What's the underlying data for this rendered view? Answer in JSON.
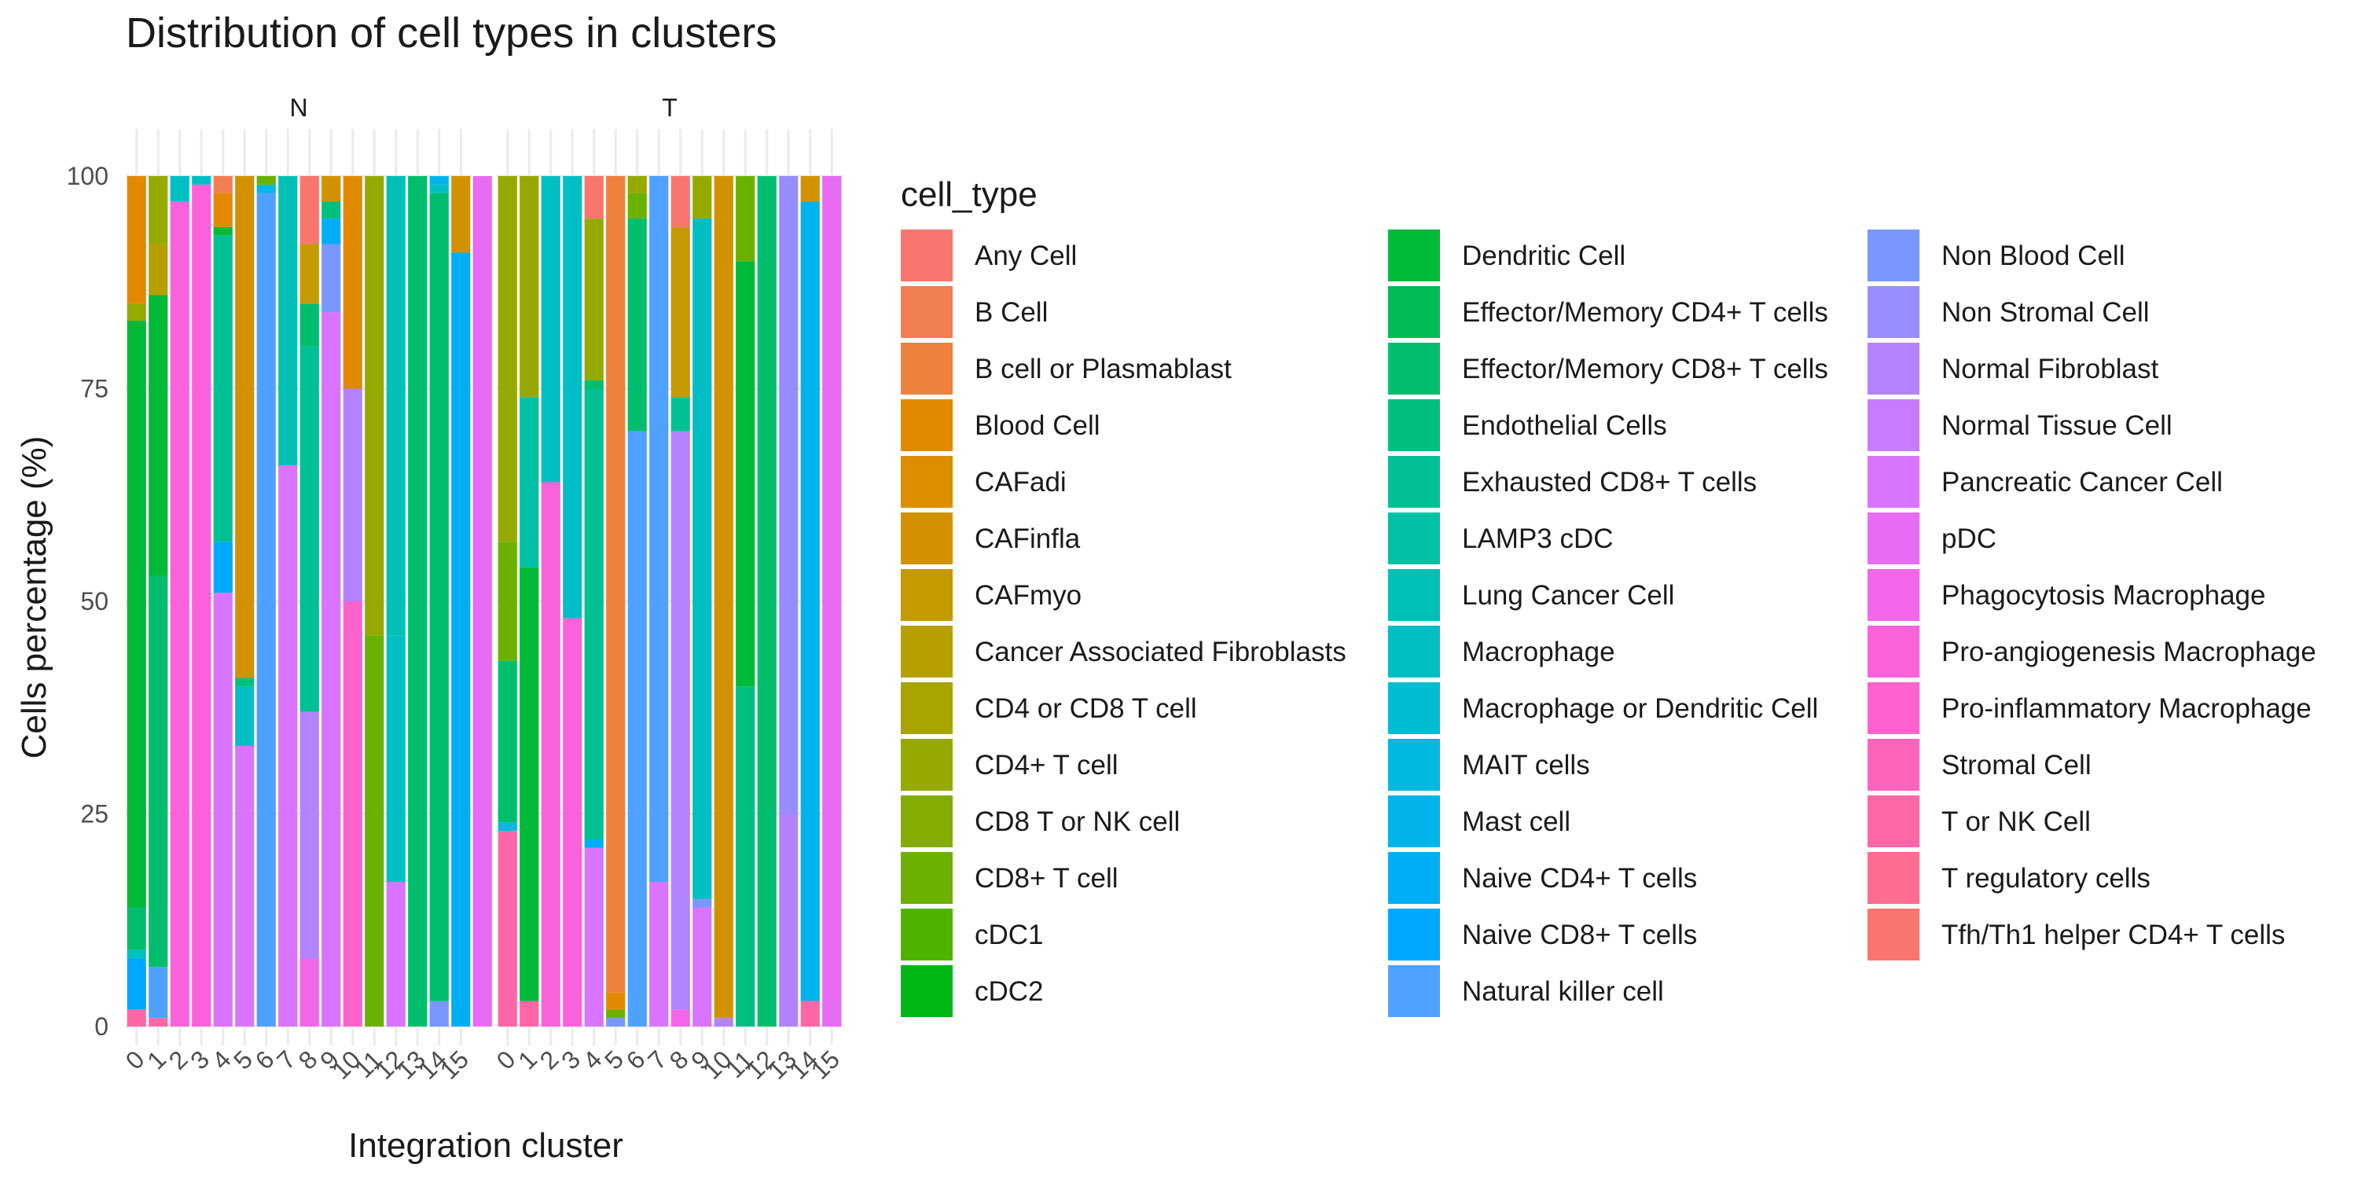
{
  "chart_data": {
    "type": "bar",
    "stacked": true,
    "title": "Distribution of cell types in clusters",
    "xlabel": "Integration cluster",
    "ylabel": "Cells percentage (%)",
    "ylim": [
      0,
      100
    ],
    "yticks": [
      0,
      25,
      50,
      75,
      100
    ],
    "legend_title": "cell_type",
    "legend_position": "right",
    "grid": true,
    "categories": [
      "0",
      "1",
      "2",
      "3",
      "4",
      "5",
      "6",
      "7",
      "8",
      "9",
      "10",
      "11",
      "12",
      "13",
      "14",
      "15"
    ],
    "cell_types": [
      {
        "name": "Any Cell",
        "color": "#F8766D"
      },
      {
        "name": "B Cell",
        "color": "#F07F51"
      },
      {
        "name": "B cell or Plasmablast",
        "color": "#EC823C"
      },
      {
        "name": "Blood Cell",
        "color": "#E38900"
      },
      {
        "name": "CAFadi",
        "color": "#DD8D00"
      },
      {
        "name": "CAFinfla",
        "color": "#D29200"
      },
      {
        "name": "CAFmyo",
        "color": "#C59900"
      },
      {
        "name": "Cancer Associated Fibroblasts",
        "color": "#B79F00"
      },
      {
        "name": "CD4 or CD8 T cell",
        "color": "#A8A400"
      },
      {
        "name": "CD4+ T cell",
        "color": "#96A900"
      },
      {
        "name": "CD8 T or NK cell",
        "color": "#83AD00"
      },
      {
        "name": "CD8+ T cell",
        "color": "#6BB100"
      },
      {
        "name": "cDC1",
        "color": "#4CB400"
      },
      {
        "name": "cDC2",
        "color": "#00B813"
      },
      {
        "name": "Dendritic Cell",
        "color": "#00BA38"
      },
      {
        "name": "Effector/Memory CD4+ T cells",
        "color": "#00BC56"
      },
      {
        "name": "Effector/Memory CD8+ T cells",
        "color": "#00BE6D"
      },
      {
        "name": "Endothelial Cells",
        "color": "#00BF81"
      },
      {
        "name": "Exhausted CD8+ T cells",
        "color": "#00C094"
      },
      {
        "name": "LAMP3 cDC",
        "color": "#00C1A5"
      },
      {
        "name": "Lung Cancer Cell",
        "color": "#00C0B5"
      },
      {
        "name": "Macrophage",
        "color": "#00BFC4"
      },
      {
        "name": "Macrophage or Dendritic Cell",
        "color": "#00BCD3"
      },
      {
        "name": "MAIT cells",
        "color": "#00B8E0"
      },
      {
        "name": "Mast cell",
        "color": "#00B4EB"
      },
      {
        "name": "Naive CD4+ T cells",
        "color": "#00AEF5"
      },
      {
        "name": "Naive CD8+ T cells",
        "color": "#00A8FF"
      },
      {
        "name": "Natural killer cell",
        "color": "#4FA1FF"
      },
      {
        "name": "Non Blood Cell",
        "color": "#7997FF"
      },
      {
        "name": "Non Stromal Cell",
        "color": "#988DFF"
      },
      {
        "name": "Normal Fibroblast",
        "color": "#B383FF"
      },
      {
        "name": "Normal Tissue Cell",
        "color": "#C77CFF"
      },
      {
        "name": "Pancreatic Cancer Cell",
        "color": "#D874FD"
      },
      {
        "name": "pDC",
        "color": "#E76BF3"
      },
      {
        "name": "Phagocytosis Macrophage",
        "color": "#F266E9"
      },
      {
        "name": "Pro-angiogenesis Macrophage",
        "color": "#FA62DB"
      },
      {
        "name": "Pro-inflammatory Macrophage",
        "color": "#FF62CC"
      },
      {
        "name": "Stromal Cell",
        "color": "#FF64BB"
      },
      {
        "name": "T or NK Cell",
        "color": "#FF66A8"
      },
      {
        "name": "T regulatory cells",
        "color": "#FF6C91"
      },
      {
        "name": "Tfh/Th1 helper CD4+ T cells",
        "color": "#F8766D"
      }
    ],
    "facets": [
      {
        "label": "N",
        "bars": [
          [
            {
              "t": "T or NK Cell",
              "v": 2
            },
            {
              "t": "Naive CD8+ T cells",
              "v": 6
            },
            {
              "t": "Macrophage",
              "v": 1
            },
            {
              "t": "Effector/Memory CD8+ T cells",
              "v": 5
            },
            {
              "t": "Dendritic Cell",
              "v": 69
            },
            {
              "t": "CD4+ T cell",
              "v": 2
            },
            {
              "t": "Blood Cell",
              "v": 15
            }
          ],
          [
            {
              "t": "T or NK Cell",
              "v": 1
            },
            {
              "t": "Natural killer cell",
              "v": 6
            },
            {
              "t": "Effector/Memory CD8+ T cells",
              "v": 46
            },
            {
              "t": "Dendritic Cell",
              "v": 33
            },
            {
              "t": "Cancer Associated Fibroblasts",
              "v": 6
            },
            {
              "t": "CD4+ T cell",
              "v": 8
            }
          ],
          [
            {
              "t": "Pro-angiogenesis Macrophage",
              "v": 97
            },
            {
              "t": "Macrophage",
              "v": 3
            }
          ],
          [
            {
              "t": "Pro-angiogenesis Macrophage",
              "v": 99
            },
            {
              "t": "Macrophage",
              "v": 1
            }
          ],
          [
            {
              "t": "Pancreatic Cancer Cell",
              "v": 51
            },
            {
              "t": "Naive CD8+ T cells",
              "v": 6
            },
            {
              "t": "Exhausted CD8+ T cells",
              "v": 36
            },
            {
              "t": "Dendritic Cell",
              "v": 1
            },
            {
              "t": "Blood Cell",
              "v": 4
            },
            {
              "t": "B Cell",
              "v": 2
            }
          ],
          [
            {
              "t": "Pancreatic Cancer Cell",
              "v": 33
            },
            {
              "t": "Macrophage",
              "v": 7
            },
            {
              "t": "Endothelial Cells",
              "v": 1
            },
            {
              "t": "CAFinfla",
              "v": 59
            }
          ],
          [
            {
              "t": "Natural killer cell",
              "v": 98
            },
            {
              "t": "MAIT cells",
              "v": 1
            },
            {
              "t": "CD8+ T cell",
              "v": 1
            }
          ],
          [
            {
              "t": "Pancreatic Cancer Cell",
              "v": 66
            },
            {
              "t": "Lung Cancer Cell",
              "v": 34
            }
          ],
          [
            {
              "t": "Phagocytosis Macrophage",
              "v": 8
            },
            {
              "t": "Normal Fibroblast",
              "v": 29
            },
            {
              "t": "Exhausted CD8+ T cells",
              "v": 43
            },
            {
              "t": "Effector/Memory CD8+ T cells",
              "v": 5
            },
            {
              "t": "CAFmyo",
              "v": 7
            },
            {
              "t": "Any Cell",
              "v": 8
            }
          ],
          [
            {
              "t": "Pancreatic Cancer Cell",
              "v": 84
            },
            {
              "t": "Non Blood Cell",
              "v": 8
            },
            {
              "t": "Naive CD4+ T cells",
              "v": 3
            },
            {
              "t": "Endothelial Cells",
              "v": 2
            },
            {
              "t": "CAFinfla",
              "v": 3
            }
          ],
          [
            {
              "t": "Pro-inflammatory Macrophage",
              "v": 50
            },
            {
              "t": "Normal Fibroblast",
              "v": 25
            },
            {
              "t": "Blood Cell",
              "v": 25
            }
          ],
          [
            {
              "t": "CD8+ T cell",
              "v": 46
            },
            {
              "t": "CD4+ T cell",
              "v": 54
            }
          ],
          [
            {
              "t": "Pancreatic Cancer Cell",
              "v": 17
            },
            {
              "t": "Macrophage",
              "v": 29
            },
            {
              "t": "Lung Cancer Cell",
              "v": 54
            }
          ],
          [
            {
              "t": "Effector/Memory CD8+ T cells",
              "v": 100
            }
          ],
          [
            {
              "t": "Non Blood Cell",
              "v": 3
            },
            {
              "t": "Effector/Memory CD8+ T cells",
              "v": 95
            },
            {
              "t": "Macrophage",
              "v": 1
            },
            {
              "t": "Mast cell",
              "v": 1
            }
          ],
          [
            {
              "t": "Naive CD4+ T cells",
              "v": 91
            },
            {
              "t": "CAFinfla",
              "v": 9
            }
          ],
          [
            {
              "t": "pDC",
              "v": 100
            }
          ]
        ]
      },
      {
        "label": "T",
        "bars": [
          [
            {
              "t": "T or NK Cell",
              "v": 23
            },
            {
              "t": "MAIT cells",
              "v": 1
            },
            {
              "t": "Effector/Memory CD8+ T cells",
              "v": 19
            },
            {
              "t": "CD8+ T cell",
              "v": 14
            },
            {
              "t": "CD4+ T cell",
              "v": 43
            }
          ],
          [
            {
              "t": "T or NK Cell",
              "v": 3
            },
            {
              "t": "Dendritic Cell",
              "v": 51
            },
            {
              "t": "LAMP3 cDC",
              "v": 20
            },
            {
              "t": "CD4+ T cell",
              "v": 26
            }
          ],
          [
            {
              "t": "Pro-angiogenesis Macrophage",
              "v": 64
            },
            {
              "t": "Macrophage",
              "v": 36
            }
          ],
          [
            {
              "t": "Pro-angiogenesis Macrophage",
              "v": 48
            },
            {
              "t": "Macrophage",
              "v": 52
            }
          ],
          [
            {
              "t": "Pancreatic Cancer Cell",
              "v": 21
            },
            {
              "t": "Naive CD4+ T cells",
              "v": 1
            },
            {
              "t": "Exhausted CD8+ T cells",
              "v": 53
            },
            {
              "t": "Effector/Memory CD8+ T cells",
              "v": 1
            },
            {
              "t": "CD4+ T cell",
              "v": 19
            },
            {
              "t": "Any Cell",
              "v": 5
            }
          ],
          [
            {
              "t": "Non Blood Cell",
              "v": 1
            },
            {
              "t": "CD8+ T cell",
              "v": 1
            },
            {
              "t": "Blood Cell",
              "v": 2
            },
            {
              "t": "B cell or Plasmablast",
              "v": 96
            }
          ],
          [
            {
              "t": "Natural killer cell",
              "v": 70
            },
            {
              "t": "Effector/Memory CD8+ T cells",
              "v": 25
            },
            {
              "t": "CD8+ T cell",
              "v": 3
            },
            {
              "t": "CD4+ T cell",
              "v": 2
            }
          ],
          [
            {
              "t": "Pancreatic Cancer Cell",
              "v": 17
            },
            {
              "t": "Natural killer cell",
              "v": 83
            }
          ],
          [
            {
              "t": "Phagocytosis Macrophage",
              "v": 2
            },
            {
              "t": "Normal Fibroblast",
              "v": 68
            },
            {
              "t": "Exhausted CD8+ T cells",
              "v": 4
            },
            {
              "t": "CAFmyo",
              "v": 20
            },
            {
              "t": "Any Cell",
              "v": 6
            }
          ],
          [
            {
              "t": "Pancreatic Cancer Cell",
              "v": 14
            },
            {
              "t": "Non Blood Cell",
              "v": 1
            },
            {
              "t": "Macrophage",
              "v": 80
            },
            {
              "t": "CD4+ T cell",
              "v": 5
            }
          ],
          [
            {
              "t": "Normal Fibroblast",
              "v": 1
            },
            {
              "t": "CAFinfla",
              "v": 99
            }
          ],
          [
            {
              "t": "Endothelial Cells",
              "v": 40
            },
            {
              "t": "Dendritic Cell",
              "v": 50
            },
            {
              "t": "CD8+ T cell",
              "v": 10
            }
          ],
          [
            {
              "t": "Effector/Memory CD8+ T cells",
              "v": 100
            }
          ],
          [
            {
              "t": "Normal Fibroblast",
              "v": 25
            },
            {
              "t": "Non Stromal Cell",
              "v": 75
            }
          ],
          [
            {
              "t": "T or NK Cell",
              "v": 3
            },
            {
              "t": "Mast cell",
              "v": 94
            },
            {
              "t": "CAFinfla",
              "v": 3
            }
          ],
          [
            {
              "t": "pDC",
              "v": 100
            }
          ]
        ]
      }
    ]
  }
}
